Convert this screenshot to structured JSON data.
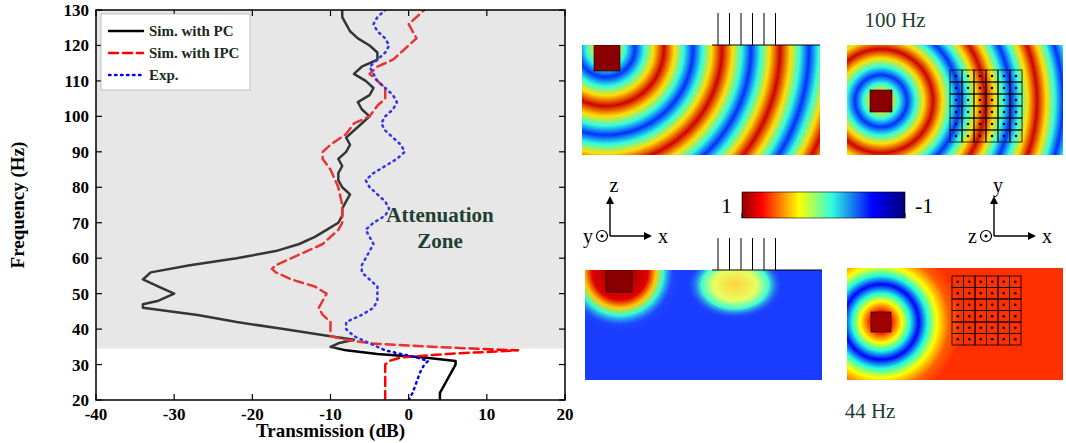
{
  "chart_data": {
    "type": "line",
    "xlabel": "Transmission (dB)",
    "ylabel": "Frequency (Hz)",
    "xlim": [
      -40,
      20
    ],
    "xticks": [
      -40,
      -30,
      -20,
      -10,
      0,
      10,
      20
    ],
    "ylim": [
      20,
      130
    ],
    "yticks": [
      20,
      30,
      40,
      50,
      60,
      70,
      80,
      90,
      100,
      110,
      120,
      130
    ],
    "legend": "upper left",
    "attenuation_zone": {
      "label": "Attenuation Zone",
      "ylim": [
        34.5,
        130
      ]
    },
    "series": [
      {
        "name": "Sim. with PC",
        "color": "#000000",
        "line_style": "solid",
        "y": [
          20,
          22,
          24,
          26,
          28,
          30,
          31,
          32,
          33,
          34,
          35,
          36,
          37,
          38,
          40,
          42,
          44,
          46,
          47,
          48,
          50,
          52,
          54,
          56,
          58,
          60,
          62,
          64,
          66,
          68,
          70,
          72,
          74,
          76,
          78,
          80,
          82,
          84,
          86,
          88,
          90,
          92,
          94,
          96,
          98,
          100,
          102,
          104,
          106,
          108,
          110,
          112,
          114,
          116,
          118,
          120,
          122,
          124,
          126,
          128,
          130
        ],
        "x": [
          4,
          4,
          4.5,
          5,
          5.5,
          6,
          6,
          2,
          -4,
          -8,
          -10,
          -9,
          -7,
          -10,
          -16,
          -22,
          -27,
          -34,
          -34,
          -32,
          -30,
          -32,
          -34,
          -33,
          -28,
          -22,
          -17,
          -14,
          -12,
          -10.5,
          -9,
          -8.5,
          -8.5,
          -8,
          -7.5,
          -8.5,
          -9,
          -9,
          -8.5,
          -9,
          -8,
          -7.5,
          -8,
          -7,
          -6,
          -5,
          -6,
          -6.5,
          -5,
          -4.5,
          -5.5,
          -7,
          -6,
          -4,
          -4,
          -5,
          -6.5,
          -7.5,
          -8,
          -8.5,
          -8.5
        ]
      },
      {
        "name": "Sim. with IPC",
        "color": "#ff0000",
        "line_style": "dashed",
        "y": [
          20,
          22,
          24,
          26,
          28,
          30,
          31,
          32,
          33,
          34,
          35,
          36,
          37,
          38,
          40,
          42,
          44,
          46,
          48,
          50,
          52,
          54,
          56,
          57,
          58,
          60,
          62,
          64,
          66,
          68,
          70,
          75,
          80,
          85,
          88,
          90,
          92,
          95,
          98,
          100,
          103,
          105,
          108,
          110,
          112,
          114,
          116,
          118,
          120,
          122,
          124,
          126,
          128,
          130
        ],
        "x": [
          -3,
          -3,
          -3,
          -3,
          -3,
          -3,
          -2.5,
          -1,
          5,
          14,
          3,
          -5,
          -8,
          -10,
          -10,
          -10,
          -11,
          -11.5,
          -11,
          -10.5,
          -12,
          -15,
          -17,
          -17.5,
          -17,
          -15,
          -13,
          -11,
          -10,
          -9,
          -8.5,
          -8.5,
          -9,
          -10,
          -11,
          -11,
          -10,
          -8,
          -7,
          -5,
          -4,
          -3,
          -3,
          -4,
          -5,
          -4,
          -2,
          -1,
          0,
          1,
          0.5,
          0,
          1,
          2
        ]
      },
      {
        "name": "Exp.",
        "color": "#0000ff",
        "line_style": "dotted",
        "y": [
          20,
          22,
          25,
          28,
          30,
          31,
          32,
          33,
          34,
          35,
          36,
          37,
          38,
          40,
          42,
          44,
          46,
          48,
          50,
          52,
          54,
          56,
          58,
          60,
          62,
          64,
          66,
          68,
          70,
          72,
          74,
          76,
          78,
          80,
          82,
          84,
          86,
          88,
          90,
          92,
          94,
          96,
          98,
          100,
          102,
          104,
          106,
          108,
          110,
          112,
          114,
          116,
          118,
          120,
          122,
          124,
          126,
          128,
          130
        ],
        "x": [
          0,
          0.5,
          1,
          1.5,
          2,
          2.5,
          1,
          -1,
          -3,
          -4,
          -5,
          -6,
          -7,
          -8,
          -8,
          -6,
          -4.5,
          -4,
          -4,
          -4,
          -5,
          -6,
          -6,
          -5.5,
          -5,
          -4.5,
          -5,
          -5.5,
          -4.5,
          -3,
          -2.5,
          -3,
          -4,
          -5,
          -5.5,
          -4.5,
          -3,
          -1.5,
          -0.5,
          -1,
          -2,
          -3,
          -3.5,
          -3,
          -2,
          -1.5,
          -2,
          -3,
          -4,
          -4.5,
          -5,
          -4,
          -3,
          -2.5,
          -3,
          -4,
          -4.5,
          -4,
          -3
        ]
      }
    ]
  },
  "field_maps": {
    "frequency_labels": [
      "100 Hz",
      "44 Hz"
    ],
    "colorbar": {
      "range": [
        -1,
        1
      ],
      "ticks": [
        1,
        -1
      ]
    },
    "axis_letters_xz": [
      "z",
      "y",
      "x"
    ],
    "axis_letters_xy": [
      "y",
      "z",
      "x"
    ]
  }
}
